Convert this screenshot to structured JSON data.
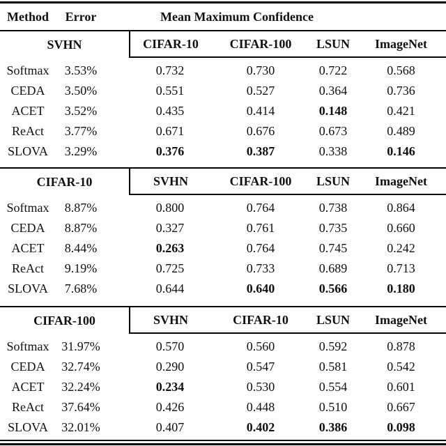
{
  "page": {
    "background": "#fdfdfd",
    "text_color": "#111111",
    "rule_color": "#000000"
  },
  "table": {
    "header": {
      "method": "Method",
      "error": "Error",
      "confidence_title": "Mean Maximum Confidence"
    },
    "blocks": [
      {
        "dataset": "SVHN",
        "columns": [
          "CIFAR-10",
          "CIFAR-100",
          "LSUN",
          "ImageNet"
        ],
        "rows": [
          {
            "method": "Softmax",
            "error": "3.53%",
            "values": [
              "0.732",
              "0.730",
              "0.722",
              "0.568"
            ],
            "bold": [
              false,
              false,
              false,
              false
            ]
          },
          {
            "method": "CEDA",
            "error": "3.50%",
            "values": [
              "0.551",
              "0.527",
              "0.364",
              "0.736"
            ],
            "bold": [
              false,
              false,
              false,
              false
            ]
          },
          {
            "method": "ACET",
            "error": "3.52%",
            "values": [
              "0.435",
              "0.414",
              "0.148",
              "0.421"
            ],
            "bold": [
              false,
              false,
              true,
              false
            ]
          },
          {
            "method": "ReAct",
            "error": "3.77%",
            "values": [
              "0.671",
              "0.676",
              "0.673",
              "0.489"
            ],
            "bold": [
              false,
              false,
              false,
              false
            ]
          },
          {
            "method": "SLOVA",
            "error": "3.29%",
            "values": [
              "0.376",
              "0.387",
              "0.338",
              "0.146"
            ],
            "bold": [
              true,
              true,
              false,
              true
            ]
          }
        ]
      },
      {
        "dataset": "CIFAR-10",
        "columns": [
          "SVHN",
          "CIFAR-100",
          "LSUN",
          "ImageNet"
        ],
        "rows": [
          {
            "method": "Softmax",
            "error": "8.87%",
            "values": [
              "0.800",
              "0.764",
              "0.738",
              "0.864"
            ],
            "bold": [
              false,
              false,
              false,
              false
            ]
          },
          {
            "method": "CEDA",
            "error": "8.87%",
            "values": [
              "0.327",
              "0.761",
              "0.735",
              "0.660"
            ],
            "bold": [
              false,
              false,
              false,
              false
            ]
          },
          {
            "method": "ACET",
            "error": "8.44%",
            "values": [
              "0.263",
              "0.764",
              "0.745",
              "0.242"
            ],
            "bold": [
              true,
              false,
              false,
              false
            ]
          },
          {
            "method": "ReAct",
            "error": "9.19%",
            "values": [
              "0.725",
              "0.733",
              "0.689",
              "0.713"
            ],
            "bold": [
              false,
              false,
              false,
              false
            ]
          },
          {
            "method": "SLOVA",
            "error": "7.68%",
            "values": [
              "0.644",
              "0.640",
              "0.566",
              "0.180"
            ],
            "bold": [
              false,
              true,
              true,
              true
            ]
          }
        ]
      },
      {
        "dataset": "CIFAR-100",
        "columns": [
          "SVHN",
          "CIFAR-10",
          "LSUN",
          "ImageNet"
        ],
        "rows": [
          {
            "method": "Softmax",
            "error": "31.97%",
            "values": [
              "0.570",
              "0.560",
              "0.592",
              "0.878"
            ],
            "bold": [
              false,
              false,
              false,
              false
            ]
          },
          {
            "method": "CEDA",
            "error": "32.74%",
            "values": [
              "0.290",
              "0.547",
              "0.581",
              "0.542"
            ],
            "bold": [
              false,
              false,
              false,
              false
            ]
          },
          {
            "method": "ACET",
            "error": "32.24%",
            "values": [
              "0.234",
              "0.530",
              "0.554",
              "0.601"
            ],
            "bold": [
              true,
              false,
              false,
              false
            ]
          },
          {
            "method": "ReAct",
            "error": "37.64%",
            "values": [
              "0.426",
              "0.448",
              "0.510",
              "0.667"
            ],
            "bold": [
              false,
              false,
              false,
              false
            ]
          },
          {
            "method": "SLOVA",
            "error": "32.01%",
            "values": [
              "0.407",
              "0.402",
              "0.386",
              "0.098"
            ],
            "bold": [
              false,
              true,
              true,
              true
            ]
          }
        ]
      }
    ]
  }
}
